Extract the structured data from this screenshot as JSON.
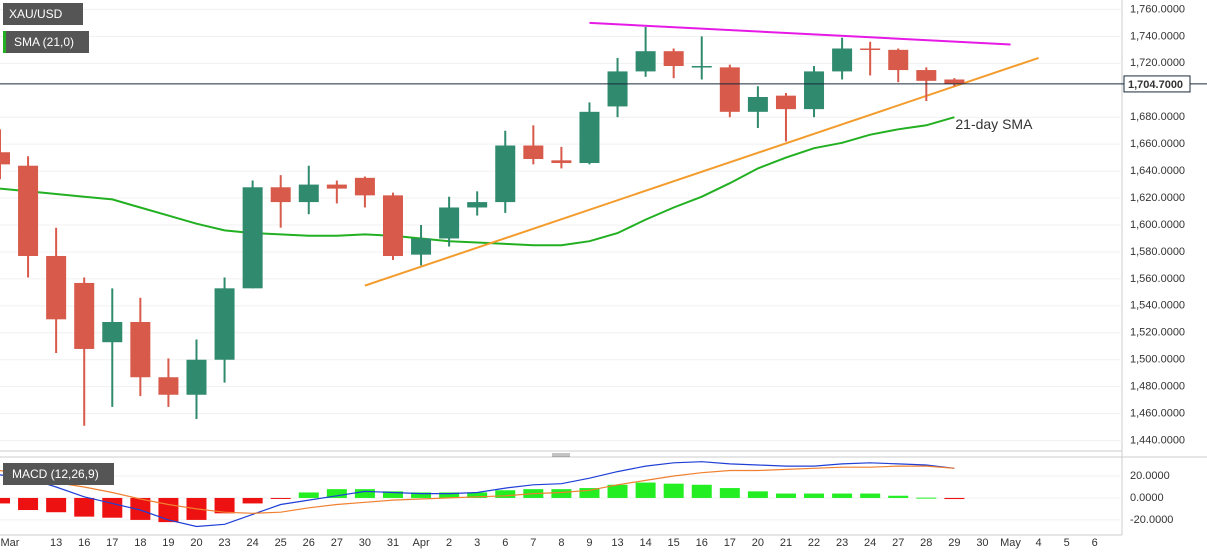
{
  "chart_data": [
    {
      "type": "candlestick",
      "title": "XAU/USD",
      "open": [
        1654,
        1644,
        1577,
        1557,
        1513,
        1528,
        1487,
        1474,
        1500,
        1553,
        1628,
        1617,
        1630,
        1635,
        1622,
        1578,
        1590,
        1613,
        1617,
        1659,
        1648,
        1646,
        1688,
        1714,
        1729,
        1717,
        1717,
        1684,
        1696,
        1686,
        1714,
        1731,
        1730,
        1715,
        1708,
        null,
        null,
        null,
        null,
        null
      ],
      "high": [
        1671,
        1651,
        1598,
        1561,
        1553,
        1546,
        1501,
        1515,
        1561,
        1633,
        1637,
        1644,
        1633,
        1636,
        1624,
        1600,
        1621,
        1625,
        1670,
        1674,
        1658,
        1691,
        1724,
        1747,
        1731,
        1740,
        1719,
        1703,
        1698,
        1718,
        1739,
        1736,
        1731,
        1717,
        1709,
        null,
        null,
        null,
        null,
        null
      ],
      "low": [
        1634,
        1561,
        1505,
        1451,
        1465,
        1473,
        1465,
        1456,
        1483,
        1553,
        1598,
        1608,
        1616,
        1613,
        1574,
        1570,
        1584,
        1607,
        1609,
        1645,
        1642,
        1645,
        1680,
        1710,
        1709,
        1708,
        1680,
        1672,
        1662,
        1680,
        1708,
        1711,
        1706,
        1692,
        1703,
        null,
        null,
        null,
        null,
        null
      ],
      "close": [
        1645,
        1577,
        1530,
        1508,
        1528,
        1487,
        1474,
        1500,
        1553,
        1628,
        1617,
        1630,
        1627,
        1622,
        1577,
        1590,
        1613,
        1617,
        1659,
        1649,
        1646,
        1684,
        1714,
        1729,
        1718,
        1718,
        1684,
        1695,
        1686,
        1714,
        1731,
        1730,
        1715,
        1707,
        1704.7,
        null,
        null,
        null,
        null,
        null
      ],
      "up_color": "#2f8a6e",
      "down_color": "#d75a4a",
      "series": [
        {
          "name": "SMA (21,0)",
          "color": "#22b022",
          "values": [
            1627,
            1625,
            1623,
            1621,
            1619,
            1613,
            1607,
            1601,
            1596,
            1594,
            1593,
            1592,
            1592,
            1593,
            1592,
            1590,
            1588,
            1587,
            1586,
            1585,
            1585,
            1588,
            1594,
            1604,
            1613,
            1621,
            1631,
            1642,
            1650,
            1657,
            1661,
            1667,
            1671,
            1674,
            1680,
            null,
            null,
            null,
            null,
            null
          ]
        }
      ],
      "annotation": "21-day SMA",
      "trendlines": [
        {
          "color": "#e619e6",
          "x": [
            21,
            36
          ],
          "values": [
            1750,
            1734
          ]
        },
        {
          "color": "#f39c2d",
          "x": [
            13,
            37
          ],
          "values": [
            1555,
            1724
          ]
        }
      ],
      "last_price": {
        "value": 1704.7,
        "label": "1,704.7000"
      },
      "ylim": [
        1433,
        1767
      ],
      "yticks": [
        {
          "value": 1440,
          "label": "1,440.0000"
        },
        {
          "value": 1460,
          "label": "1,460.0000"
        },
        {
          "value": 1480,
          "label": "1,480.0000"
        },
        {
          "value": 1500,
          "label": "1,500.0000"
        },
        {
          "value": 1520,
          "label": "1,520.0000"
        },
        {
          "value": 1540,
          "label": "1,540.0000"
        },
        {
          "value": 1560,
          "label": "1,560.0000"
        },
        {
          "value": 1580,
          "label": "1,580.0000"
        },
        {
          "value": 1600,
          "label": "1,600.0000"
        },
        {
          "value": 1620,
          "label": "1,620.0000"
        },
        {
          "value": 1640,
          "label": "1,640.0000"
        },
        {
          "value": 1660,
          "label": "1,660.0000"
        },
        {
          "value": 1680,
          "label": "1,680.0000"
        },
        {
          "value": 1720,
          "label": "1,720.0000"
        },
        {
          "value": 1740,
          "label": "1,740.0000"
        },
        {
          "value": 1760,
          "label": "1,760.0000"
        }
      ],
      "grid": true
    },
    {
      "type": "macd",
      "title": "MACD (12,26,9)",
      "categories": [
        "Mar",
        null,
        "13",
        "16",
        "17",
        "18",
        "19",
        "20",
        "23",
        "24",
        "25",
        "26",
        "27",
        "30",
        "31",
        "Apr",
        "2",
        "3",
        "6",
        "7",
        "8",
        "9",
        "13",
        "14",
        "15",
        "16",
        "17",
        "20",
        "21",
        "22",
        "23",
        "24",
        "27",
        "28",
        "29",
        "30",
        "May",
        "4",
        "5",
        "6"
      ],
      "histogram": {
        "up_color": "#22ee22",
        "down_color": "#ee1111",
        "values": [
          -5,
          -11,
          -13,
          -17,
          -18,
          -20,
          -22,
          -20,
          -14,
          -5,
          -0.5,
          5,
          8,
          8,
          6,
          5,
          5,
          5,
          7,
          8,
          8,
          9,
          12,
          14,
          13,
          12,
          9,
          6,
          4,
          4,
          4,
          4,
          2,
          0.3,
          -1,
          null,
          null,
          null,
          null,
          null
        ]
      },
      "macd": {
        "color": "#1f3fd6",
        "values": [
          21,
          18,
          10,
          1,
          -5,
          -11,
          -20,
          -26,
          -24,
          -15,
          -6,
          -2,
          2,
          6,
          5,
          4,
          4,
          5,
          9,
          12,
          13,
          18,
          24,
          29,
          32,
          33,
          31,
          30,
          29,
          29,
          31,
          32,
          31,
          30,
          27,
          null,
          null,
          null,
          null,
          null
        ]
      },
      "signal": {
        "color": "#f08030",
        "values": [
          25,
          20,
          14,
          10,
          5,
          -1,
          -6,
          -10,
          -13,
          -14,
          -13,
          -9,
          -6,
          -4,
          -2,
          -1,
          0,
          1,
          2,
          4,
          5,
          7,
          12,
          16,
          20,
          23,
          25,
          25,
          26,
          27,
          28,
          28,
          29,
          29,
          27,
          null,
          null,
          null,
          null,
          null
        ]
      },
      "ylim": [
        -31,
        35
      ],
      "yticks": [
        {
          "value": 20,
          "label": "20.0000"
        },
        {
          "value": 0,
          "label": "0.0000"
        },
        {
          "value": -20,
          "label": "-20.0000"
        }
      ]
    }
  ]
}
